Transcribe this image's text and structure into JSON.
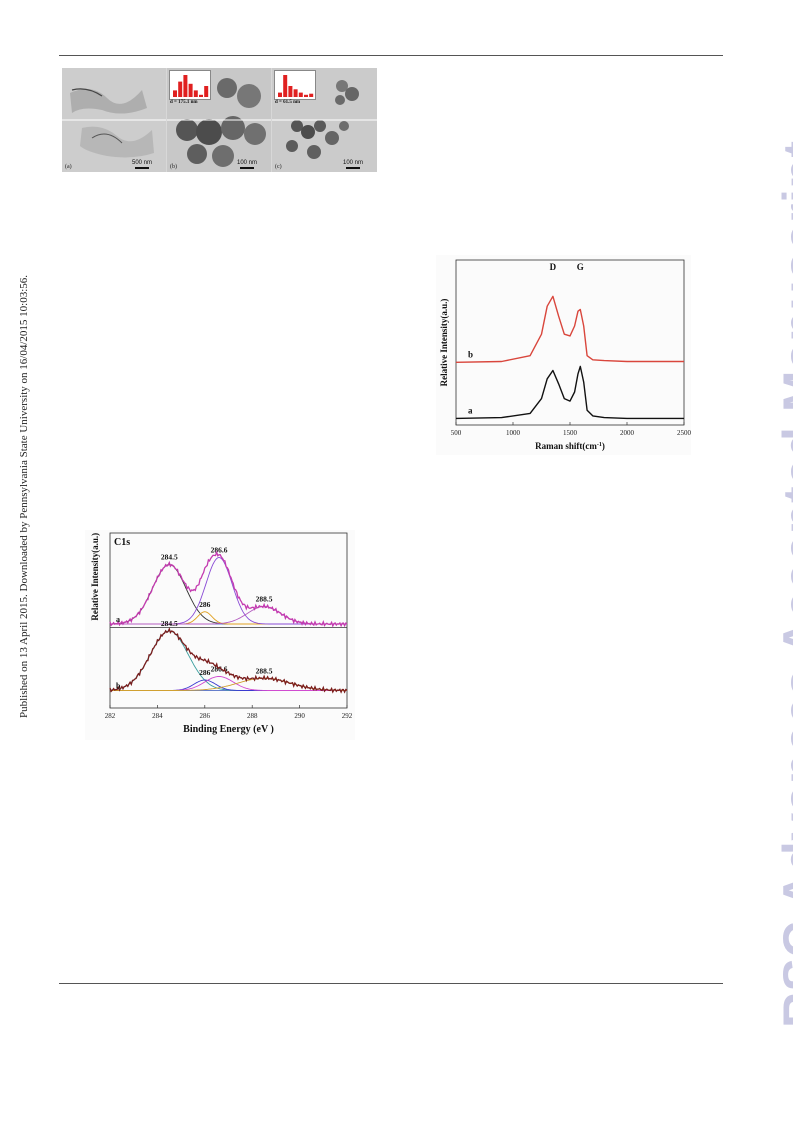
{
  "side_notice": "Published on 13 April 2015. Downloaded by Pennsylvania State University on 16/04/2015 10:03:56.",
  "watermark": "RSC Advances Accepted Manuscript",
  "tem_figure": {
    "panels": [
      {
        "letter": "(a)",
        "scale": "500 nm",
        "diameter": ""
      },
      {
        "letter": "(b)",
        "scale": "100 nm",
        "diameter": "d = 175.1 nm"
      },
      {
        "letter": "(c)",
        "scale": "100 nm",
        "diameter": "d = 61.5 nm"
      }
    ],
    "hist_b_values": [
      0.3,
      0.7,
      1.0,
      0.6,
      0.3,
      0.1,
      0.5
    ],
    "hist_c_values": [
      0.2,
      1.0,
      0.5,
      0.35,
      0.2,
      0.1,
      0.15
    ]
  },
  "chart_data": [
    {
      "type": "line",
      "title": "",
      "xlabel": "Raman shift(cm",
      "xlabel_sup": "-1",
      "xlabel_close": ")",
      "ylabel": "Relative Intensity(a.u.)",
      "xlim": [
        500,
        2500
      ],
      "xticks": [
        "500",
        "1000",
        "1500",
        "2000",
        "2500"
      ],
      "xtick_values": [
        500,
        1000,
        1500,
        2000,
        2500
      ],
      "ylim": [
        0,
        1
      ],
      "peak_labels": [
        {
          "text": "D",
          "x": 1350
        },
        {
          "text": "G",
          "x": 1590
        }
      ],
      "series": [
        {
          "name": "a",
          "color": "#111111",
          "x": [
            500,
            900,
            1150,
            1250,
            1300,
            1350,
            1400,
            1450,
            1500,
            1540,
            1570,
            1590,
            1620,
            1650,
            1700,
            1800,
            2000,
            2500
          ],
          "y": [
            0.04,
            0.045,
            0.07,
            0.16,
            0.28,
            0.33,
            0.25,
            0.16,
            0.145,
            0.2,
            0.31,
            0.355,
            0.26,
            0.09,
            0.055,
            0.045,
            0.04,
            0.04
          ]
        },
        {
          "name": "b",
          "color": "#d9463c",
          "x": [
            500,
            900,
            1150,
            1250,
            1300,
            1350,
            1400,
            1450,
            1500,
            1540,
            1570,
            1590,
            1620,
            1650,
            1700,
            1800,
            2000,
            2500
          ],
          "y": [
            0.38,
            0.385,
            0.42,
            0.55,
            0.72,
            0.78,
            0.66,
            0.55,
            0.54,
            0.6,
            0.69,
            0.7,
            0.6,
            0.42,
            0.395,
            0.39,
            0.385,
            0.385
          ]
        }
      ]
    },
    {
      "type": "line",
      "title": "C1s",
      "xlabel": "Binding Energy (eV )",
      "ylabel": "Relative Intensity(a.u.)",
      "xlim": [
        292,
        282
      ],
      "xticks": [
        "282",
        "284",
        "286",
        "288",
        "290",
        "292"
      ],
      "xtick_values": [
        282,
        284,
        286,
        288,
        290,
        292
      ],
      "ylim": [
        0,
        1
      ],
      "series": [
        {
          "name": "a",
          "baseline": 0.48,
          "envelope_color": "#c43bb0",
          "components": [
            {
              "center": 284.5,
              "height": 0.34,
              "width": 0.7,
              "color": "#333333",
              "label": "284.5"
            },
            {
              "center": 286.0,
              "height": 0.07,
              "width": 0.3,
              "color": "#e0a020",
              "label": "286"
            },
            {
              "center": 286.6,
              "height": 0.38,
              "width": 0.55,
              "color": "#8a4bd6",
              "label": "286.6"
            },
            {
              "center": 288.5,
              "height": 0.1,
              "width": 0.7,
              "color": "#b45cc0",
              "label": "288.5"
            }
          ]
        },
        {
          "name": "b",
          "baseline": 0.1,
          "envelope_color": "#7a1d1d",
          "components": [
            {
              "center": 284.5,
              "height": 0.34,
              "width": 0.8,
              "color": "#3a9e9e",
              "label": "284.5"
            },
            {
              "center": 286.0,
              "height": 0.06,
              "width": 0.45,
              "color": "#3a3ad0",
              "label": "286"
            },
            {
              "center": 286.6,
              "height": 0.08,
              "width": 0.6,
              "color": "#d04bd0",
              "label": "286.6"
            },
            {
              "center": 288.5,
              "height": 0.07,
              "width": 1.1,
              "color": "#d0a030",
              "label": "288.5"
            }
          ]
        }
      ]
    }
  ]
}
